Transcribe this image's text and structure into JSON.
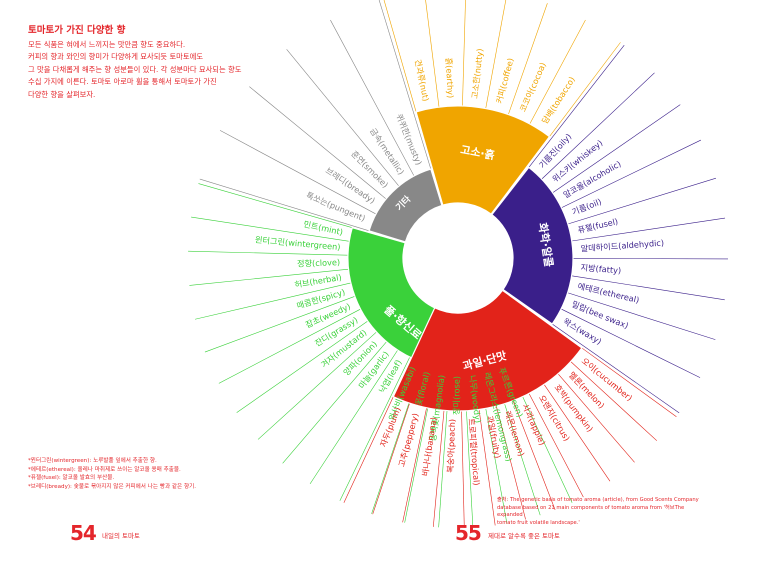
{
  "heading": {
    "title": "토마토가 가진 다양한 향",
    "intro": [
      "모든 식품은 혀에서 느끼지는 맛만큼 향도 중요하다.",
      "커피의 향과 와인의 향미가 다양하게 묘사되듯 토마토에도",
      "그 맛을 다채롭게 해주는 향 성분들이 있다. 각 성분마다 묘사되는 향도",
      "수십 가지에 이른다. 토마토 아로마 휠을 통해서 토마토가 가진",
      "다양한 향을 살펴보자."
    ]
  },
  "chart_data": {
    "type": "sunburst",
    "categories": [
      {
        "name": "풀·향신료",
        "color": "#3ad13a",
        "descriptors": [
          "푸르른(green)",
          "레몬그라스(lemongrass)",
          "나무(woody)",
          "장미(rose)",
          "동백꽃(magnolia)",
          "꽃(floral)",
          "와사비(wasabi)",
          "낙엽(leaf)",
          "마늘(garlic)",
          "양파(onion)",
          "겨자(mustard)",
          "잔디(grassy)",
          "잡초(weedy)",
          "매콤한(spicy)",
          "허브(herbal)",
          "정향(clove)",
          "윈터그린(wintergreen)",
          "민트(mint)"
        ]
      },
      {
        "name": "기타",
        "color": "#888888",
        "descriptors": [
          "톡쏘는(pungent)",
          "브레디(bready)",
          "훈연(smoke)",
          "금속(metallic)",
          "퀴퀴한(musty)"
        ]
      },
      {
        "name": "고소·흙",
        "color": "#f0a500",
        "descriptors": [
          "견과류(nut)",
          "흙(earthy)",
          "고소한(nutty)",
          "커피(coffee)",
          "코코아(cocoa)",
          "담배(tobacco)"
        ]
      },
      {
        "name": "화학·알콜",
        "color": "#3a1f8a",
        "descriptors": [
          "기름진(oily)",
          "위스키(whiskey)",
          "알코올(alcoholic)",
          "기름(oil)",
          "퓨젤(fusel)",
          "알데하이드(aldehydic)",
          "지방(fatty)",
          "에테르(ethereal)",
          "밀랍(bee swax)",
          "왁스(waxy)"
        ]
      },
      {
        "name": "과일·단맛",
        "color": "#e2231a",
        "descriptors": [
          "오이(cucumber)",
          "멜론(melon)",
          "호박(pumpkin)",
          "오렌지(citrus)",
          "사과(apple)",
          "레몬(lemon)",
          "과일(fruity)",
          "트로피컬(tropical)",
          "복숭아(peach)",
          "바나나(banana)",
          "고추(peppery)",
          "자두(plum)"
        ]
      }
    ]
  },
  "notes": [
    "*윈터그린(wintergreen): 노루발풀 잎에서 추출한 향.",
    "*에테르(ethereal): 올레나 마취제로 쓰이는 알코올 용매 추출물.",
    "*퓨젤(fusel): 알코올 발효의 부산물.",
    "*브레디(bready): 숯불로 볶아지지 않은 커피에서 나는 빵과 같은 향기."
  ],
  "source_note": [
    "출처: The genetic basis of tomato aroma (article), from Good Scents Company",
    "database based on 21 main components of tomato aroma from '허브The expanded",
    "tomato fruit volatile landscape.'"
  ],
  "footer": {
    "left_page": "54",
    "left_title": "내일의 토마토",
    "right_page": "55",
    "right_title": "제대로 알수록 좋은 토마토"
  }
}
